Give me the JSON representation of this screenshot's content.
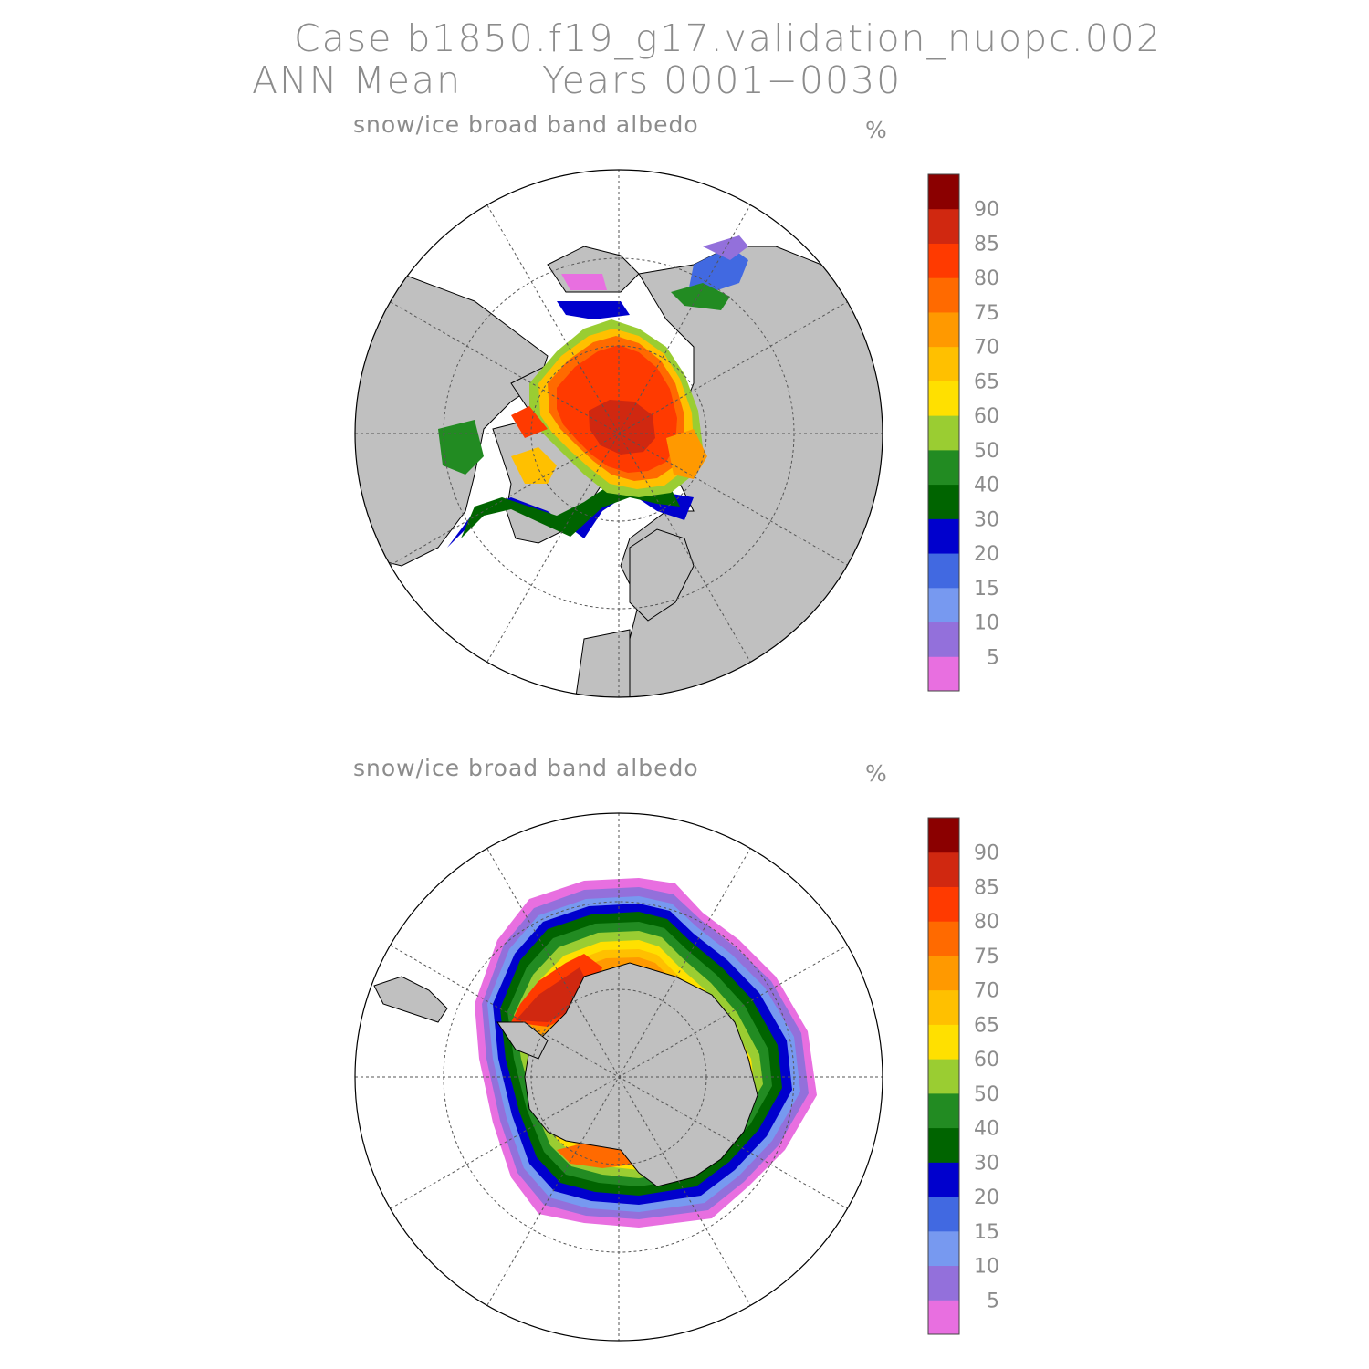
{
  "title": {
    "case": "Case b1850.f19_g17.validation_nuopc.002",
    "season": "ANN Mean",
    "years": "Years 0001−0030"
  },
  "panels": [
    {
      "hemisphere": "north",
      "variable": "snow/ice broad band albedo",
      "unit": "%"
    },
    {
      "hemisphere": "south",
      "variable": "snow/ice broad band albedo",
      "unit": "%"
    }
  ],
  "colorbar": {
    "labels": [
      "5",
      "10",
      "15",
      "20",
      "30",
      "40",
      "50",
      "60",
      "65",
      "70",
      "75",
      "80",
      "85",
      "90"
    ],
    "colors": [
      "#e86fe0",
      "#9370db",
      "#7799f0",
      "#4169e1",
      "#0000cd",
      "#006400",
      "#228b22",
      "#9acd32",
      "#ffe000",
      "#ffc000",
      "#ff9900",
      "#ff6a00",
      "#ff3a00",
      "#d02810",
      "#8b0000"
    ]
  },
  "colors": {
    "land": "#c0c0c0",
    "text": "#8c8c8c"
  }
}
